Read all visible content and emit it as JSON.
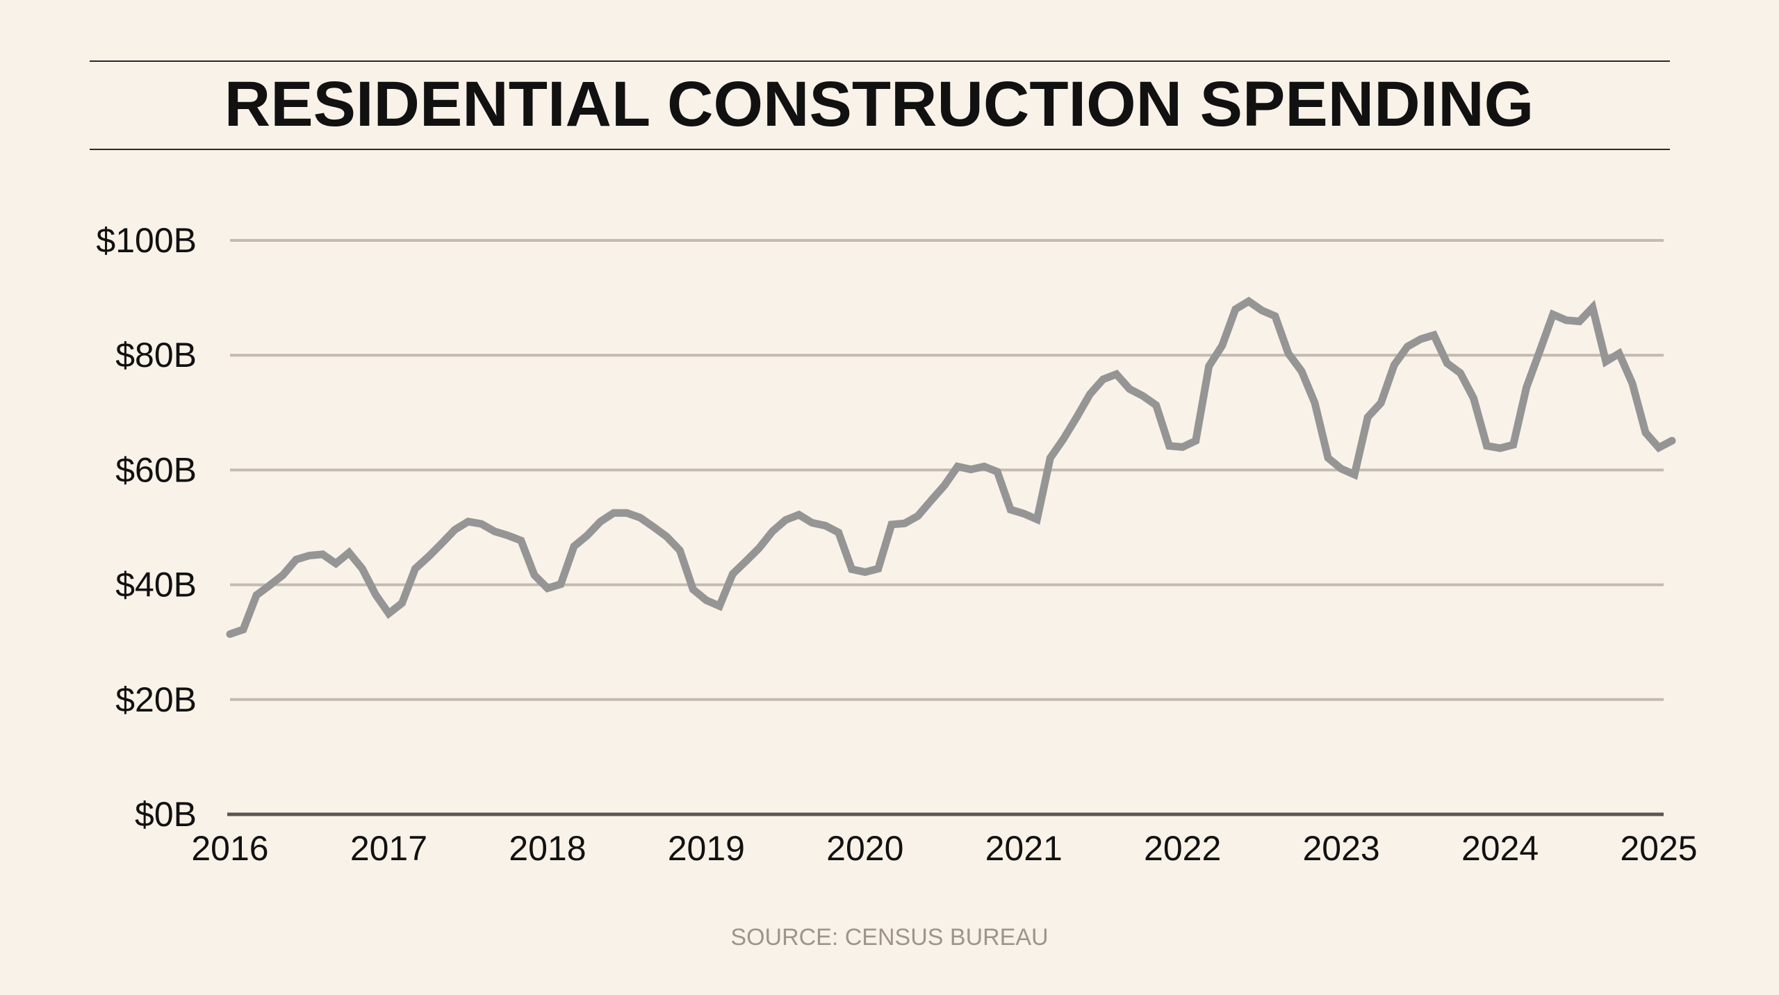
{
  "chart_data": {
    "type": "line",
    "title": "RESIDENTIAL CONSTRUCTION SPENDING",
    "source": "SOURCE: CENSUS BUREAU",
    "xlabel": "",
    "ylabel": "",
    "x_start": "2016-01",
    "x_frequency": "monthly",
    "xlim": [
      2016,
      2025.083
    ],
    "ylim": [
      0,
      100
    ],
    "x_ticks": [
      2016,
      2017,
      2018,
      2019,
      2020,
      2021,
      2022,
      2023,
      2024,
      2025
    ],
    "x_tick_labels": [
      "2016",
      "2017",
      "2018",
      "2019",
      "2020",
      "2021",
      "2022",
      "2023",
      "2024",
      "2025"
    ],
    "y_ticks": [
      0,
      20,
      40,
      60,
      80,
      100
    ],
    "y_tick_labels": [
      "$0B",
      "$20B",
      "$40B",
      "$60B",
      "$80B",
      "$100B"
    ],
    "grid": true,
    "legend": "none",
    "colors": {
      "line": "#959595",
      "grid": "#c3bbb0",
      "axis": "#5b5451",
      "background": "#f9f2e8"
    },
    "series": [
      {
        "values": [
          31.4,
          32.2,
          38.2,
          39.9,
          41.7,
          44.4,
          45.1,
          45.3,
          43.7,
          45.6,
          42.8,
          38.3,
          35.0,
          36.8,
          42.8,
          44.9,
          47.2,
          49.6,
          51.0,
          50.6,
          49.3,
          48.6,
          47.7,
          41.7,
          39.4,
          40.1,
          46.7,
          48.6,
          51.0,
          52.5,
          52.5,
          51.7,
          50.1,
          48.4,
          46.0,
          39.2,
          37.3,
          36.3,
          41.9,
          44.1,
          46.4,
          49.3,
          51.3,
          52.2,
          50.8,
          50.3,
          49.1,
          42.7,
          42.2,
          42.8,
          50.5,
          50.7,
          52.0,
          54.7,
          57.3,
          60.6,
          60.1,
          60.6,
          59.7,
          53.1,
          52.4,
          51.4,
          62.1,
          65.4,
          69.2,
          73.2,
          75.8,
          76.7,
          74.1,
          72.9,
          71.3,
          64.2,
          64.0,
          65.1,
          78.1,
          81.7,
          88.0,
          89.4,
          87.8,
          86.8,
          80.3,
          77.2,
          71.7,
          62.1,
          60.2,
          59.2,
          69.2,
          71.7,
          78.3,
          81.5,
          82.8,
          83.5,
          78.6,
          76.9,
          72.5,
          64.2,
          63.8,
          64.4,
          74.4,
          80.7,
          87.1,
          86.1,
          85.9,
          88.3,
          78.9,
          80.3,
          75.1,
          66.5,
          63.9,
          65.1
        ]
      }
    ]
  }
}
